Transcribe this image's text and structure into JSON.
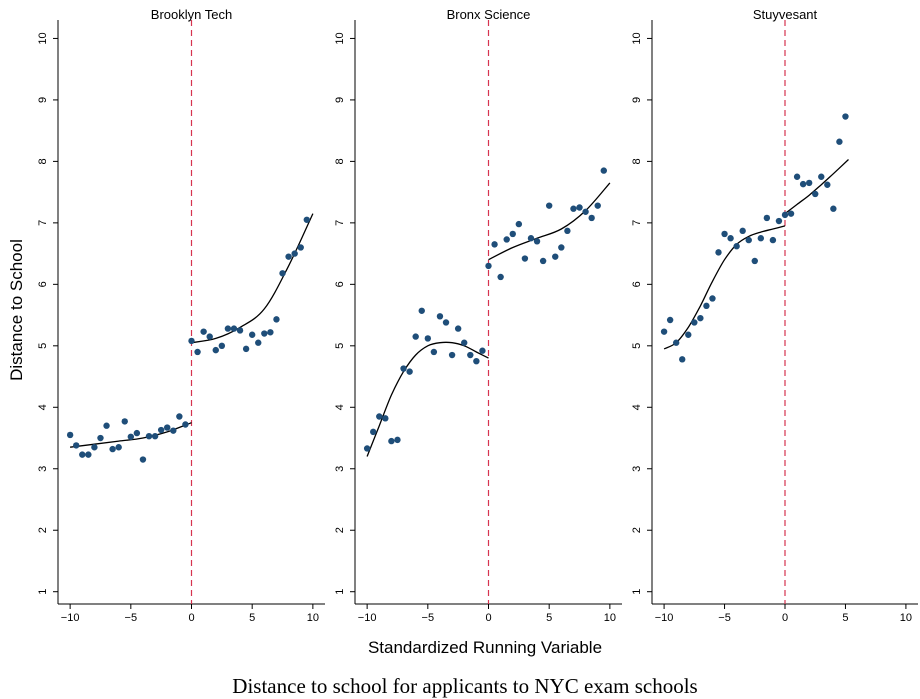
{
  "caption": "Distance to school for applicants to NYC exam schools",
  "chart_data": {
    "type": "scatter",
    "ylabel": "Distance to School",
    "xlabel": "Standardized Running Variable",
    "xlim": [
      -11,
      11
    ],
    "ylim": [
      0.8,
      10.3
    ],
    "xticks": [
      -10,
      -5,
      0,
      5,
      10
    ],
    "xtick_labels": [
      "−10",
      "−5",
      "0",
      "5",
      "10"
    ],
    "yticks": [
      1,
      2,
      3,
      4,
      5,
      6,
      7,
      8,
      9,
      10
    ],
    "cutoff": 0,
    "colors": {
      "points": "#1f4e79",
      "fit": "#000000",
      "cutoff": "#d6334f"
    },
    "panels": [
      {
        "title": "Brooklyn Tech",
        "points": [
          [
            -10,
            3.55
          ],
          [
            -9.5,
            3.38
          ],
          [
            -9,
            3.23
          ],
          [
            -8.5,
            3.23
          ],
          [
            -8,
            3.35
          ],
          [
            -7.5,
            3.5
          ],
          [
            -7,
            3.7
          ],
          [
            -6.5,
            3.32
          ],
          [
            -6,
            3.35
          ],
          [
            -5.5,
            3.77
          ],
          [
            -5,
            3.52
          ],
          [
            -4.5,
            3.58
          ],
          [
            -4,
            3.15
          ],
          [
            -3.5,
            3.53
          ],
          [
            -3,
            3.53
          ],
          [
            -2.5,
            3.63
          ],
          [
            -2,
            3.67
          ],
          [
            -1.5,
            3.62
          ],
          [
            -1,
            3.85
          ],
          [
            -0.5,
            3.72
          ],
          [
            0,
            5.08
          ],
          [
            0.5,
            4.9
          ],
          [
            1,
            5.23
          ],
          [
            1.5,
            5.15
          ],
          [
            2,
            4.93
          ],
          [
            2.5,
            5.0
          ],
          [
            3,
            5.28
          ],
          [
            3.5,
            5.28
          ],
          [
            4,
            5.25
          ],
          [
            4.5,
            4.95
          ],
          [
            5,
            5.18
          ],
          [
            5.5,
            5.05
          ],
          [
            6,
            5.2
          ],
          [
            6.5,
            5.22
          ],
          [
            7,
            5.43
          ],
          [
            7.5,
            6.18
          ],
          [
            8,
            6.45
          ],
          [
            8.5,
            6.5
          ],
          [
            9,
            6.6
          ],
          [
            9.5,
            7.05
          ]
        ],
        "fit_left": [
          [
            -10,
            3.35
          ],
          [
            -8,
            3.4
          ],
          [
            -6,
            3.45
          ],
          [
            -4,
            3.5
          ],
          [
            -2,
            3.6
          ],
          [
            0,
            3.75
          ]
        ],
        "fit_right": [
          [
            0,
            5.05
          ],
          [
            2,
            5.12
          ],
          [
            4,
            5.3
          ],
          [
            6,
            5.6
          ],
          [
            8,
            6.3
          ],
          [
            10,
            7.15
          ]
        ]
      },
      {
        "title": "Bronx Science",
        "points": [
          [
            -10,
            3.33
          ],
          [
            -9.5,
            3.6
          ],
          [
            -9,
            3.85
          ],
          [
            -8.5,
            3.82
          ],
          [
            -8,
            3.45
          ],
          [
            -7.5,
            3.47
          ],
          [
            -7,
            4.63
          ],
          [
            -6.5,
            4.58
          ],
          [
            -6,
            5.15
          ],
          [
            -5.5,
            5.57
          ],
          [
            -5,
            5.12
          ],
          [
            -4.5,
            4.9
          ],
          [
            -4,
            5.48
          ],
          [
            -3.5,
            5.38
          ],
          [
            -3,
            4.85
          ],
          [
            -2.5,
            5.28
          ],
          [
            -2,
            5.05
          ],
          [
            -1.5,
            4.85
          ],
          [
            -1,
            4.75
          ],
          [
            -0.5,
            4.92
          ],
          [
            0,
            6.3
          ],
          [
            0.5,
            6.65
          ],
          [
            1,
            6.12
          ],
          [
            1.5,
            6.73
          ],
          [
            2,
            6.82
          ],
          [
            2.5,
            6.98
          ],
          [
            3,
            6.42
          ],
          [
            3.5,
            6.75
          ],
          [
            4,
            6.7
          ],
          [
            4.5,
            6.38
          ],
          [
            5,
            7.28
          ],
          [
            5.5,
            6.45
          ],
          [
            6,
            6.6
          ],
          [
            6.5,
            6.87
          ],
          [
            7,
            7.23
          ],
          [
            7.5,
            7.25
          ],
          [
            8,
            7.18
          ],
          [
            8.5,
            7.08
          ],
          [
            9,
            7.28
          ],
          [
            9.5,
            7.85
          ]
        ],
        "fit_left": [
          [
            -10,
            3.2
          ],
          [
            -9,
            3.7
          ],
          [
            -8,
            4.2
          ],
          [
            -7,
            4.58
          ],
          [
            -6,
            4.85
          ],
          [
            -5,
            5.0
          ],
          [
            -4,
            5.05
          ],
          [
            -3,
            5.05
          ],
          [
            -2,
            5.0
          ],
          [
            -1,
            4.9
          ],
          [
            0,
            4.8
          ]
        ],
        "fit_right": [
          [
            0,
            6.4
          ],
          [
            2,
            6.6
          ],
          [
            4,
            6.75
          ],
          [
            6,
            6.9
          ],
          [
            8,
            7.2
          ],
          [
            10,
            7.65
          ]
        ]
      },
      {
        "title": "Stuyvesant",
        "points": [
          [
            -10,
            5.23
          ],
          [
            -9.5,
            5.42
          ],
          [
            -9,
            5.05
          ],
          [
            -8.5,
            4.78
          ],
          [
            -8,
            5.18
          ],
          [
            -7.5,
            5.38
          ],
          [
            -7,
            5.45
          ],
          [
            -6.5,
            5.65
          ],
          [
            -6,
            5.77
          ],
          [
            -5.5,
            6.52
          ],
          [
            -5,
            6.82
          ],
          [
            -4.5,
            6.75
          ],
          [
            -4,
            6.62
          ],
          [
            -3.5,
            6.87
          ],
          [
            -3,
            6.72
          ],
          [
            -2.5,
            6.38
          ],
          [
            -2,
            6.75
          ],
          [
            -1.5,
            7.08
          ],
          [
            -1,
            6.72
          ],
          [
            -0.5,
            7.03
          ],
          [
            0,
            7.13
          ],
          [
            0.5,
            7.15
          ],
          [
            1,
            7.75
          ],
          [
            1.5,
            7.63
          ],
          [
            2,
            7.65
          ],
          [
            2.5,
            7.47
          ],
          [
            3,
            7.75
          ],
          [
            3.5,
            7.62
          ],
          [
            4,
            7.23
          ],
          [
            4.5,
            8.32
          ],
          [
            5,
            8.73
          ]
        ],
        "fit_left": [
          [
            -10,
            4.95
          ],
          [
            -9,
            5.05
          ],
          [
            -8,
            5.3
          ],
          [
            -7,
            5.65
          ],
          [
            -6,
            6.05
          ],
          [
            -5,
            6.4
          ],
          [
            -4,
            6.65
          ],
          [
            -3,
            6.78
          ],
          [
            -2,
            6.85
          ],
          [
            -1,
            6.9
          ],
          [
            0,
            6.95
          ]
        ],
        "fit_right": [
          [
            0,
            7.15
          ],
          [
            1,
            7.3
          ],
          [
            2,
            7.45
          ],
          [
            3,
            7.62
          ],
          [
            4,
            7.8
          ],
          [
            5.25,
            8.03
          ]
        ]
      }
    ]
  }
}
